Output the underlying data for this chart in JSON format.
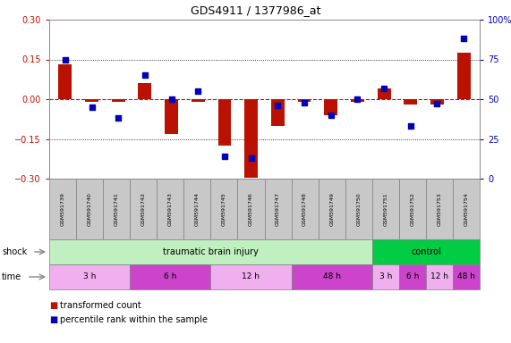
{
  "title": "GDS4911 / 1377986_at",
  "samples": [
    "GSM591739",
    "GSM591740",
    "GSM591741",
    "GSM591742",
    "GSM591743",
    "GSM591744",
    "GSM591745",
    "GSM591746",
    "GSM591747",
    "GSM591748",
    "GSM591749",
    "GSM591750",
    "GSM591751",
    "GSM591752",
    "GSM591753",
    "GSM591754"
  ],
  "red_values": [
    0.13,
    -0.01,
    -0.01,
    0.06,
    -0.13,
    -0.01,
    -0.175,
    -0.295,
    -0.1,
    -0.01,
    -0.06,
    -0.01,
    0.04,
    -0.02,
    -0.02,
    0.175
  ],
  "blue_values": [
    75,
    45,
    38,
    65,
    50,
    55,
    14,
    13,
    46,
    48,
    40,
    50,
    57,
    33,
    47,
    88
  ],
  "ylim_left": [
    -0.3,
    0.3
  ],
  "ylim_right": [
    0,
    100
  ],
  "yticks_left": [
    -0.3,
    -0.15,
    0.0,
    0.15,
    0.3
  ],
  "yticks_right": [
    0,
    25,
    50,
    75,
    100
  ],
  "shock_groups": [
    {
      "label": "traumatic brain injury",
      "start": 0,
      "end": 12,
      "color": "#C0F0C0"
    },
    {
      "label": "control",
      "start": 12,
      "end": 16,
      "color": "#00CC44"
    }
  ],
  "time_groups": [
    {
      "label": "3 h",
      "start": 0,
      "end": 3,
      "color": "#F0B0F0"
    },
    {
      "label": "6 h",
      "start": 3,
      "end": 6,
      "color": "#CC44CC"
    },
    {
      "label": "12 h",
      "start": 6,
      "end": 9,
      "color": "#F0B0F0"
    },
    {
      "label": "48 h",
      "start": 9,
      "end": 12,
      "color": "#CC44CC"
    },
    {
      "label": "3 h",
      "start": 12,
      "end": 13,
      "color": "#F0B0F0"
    },
    {
      "label": "6 h",
      "start": 13,
      "end": 14,
      "color": "#CC44CC"
    },
    {
      "label": "12 h",
      "start": 14,
      "end": 15,
      "color": "#F0B0F0"
    },
    {
      "label": "48 h",
      "start": 15,
      "end": 16,
      "color": "#CC44CC"
    }
  ],
  "bar_width": 0.5,
  "dot_size": 22,
  "red_color": "#BB1100",
  "blue_color": "#0000BB",
  "zero_line_color": "#DD0000",
  "sample_box_color": "#C8C8C8",
  "label_shock": "shock",
  "label_time": "time",
  "legend_red": "transformed count",
  "legend_blue": "percentile rank within the sample"
}
